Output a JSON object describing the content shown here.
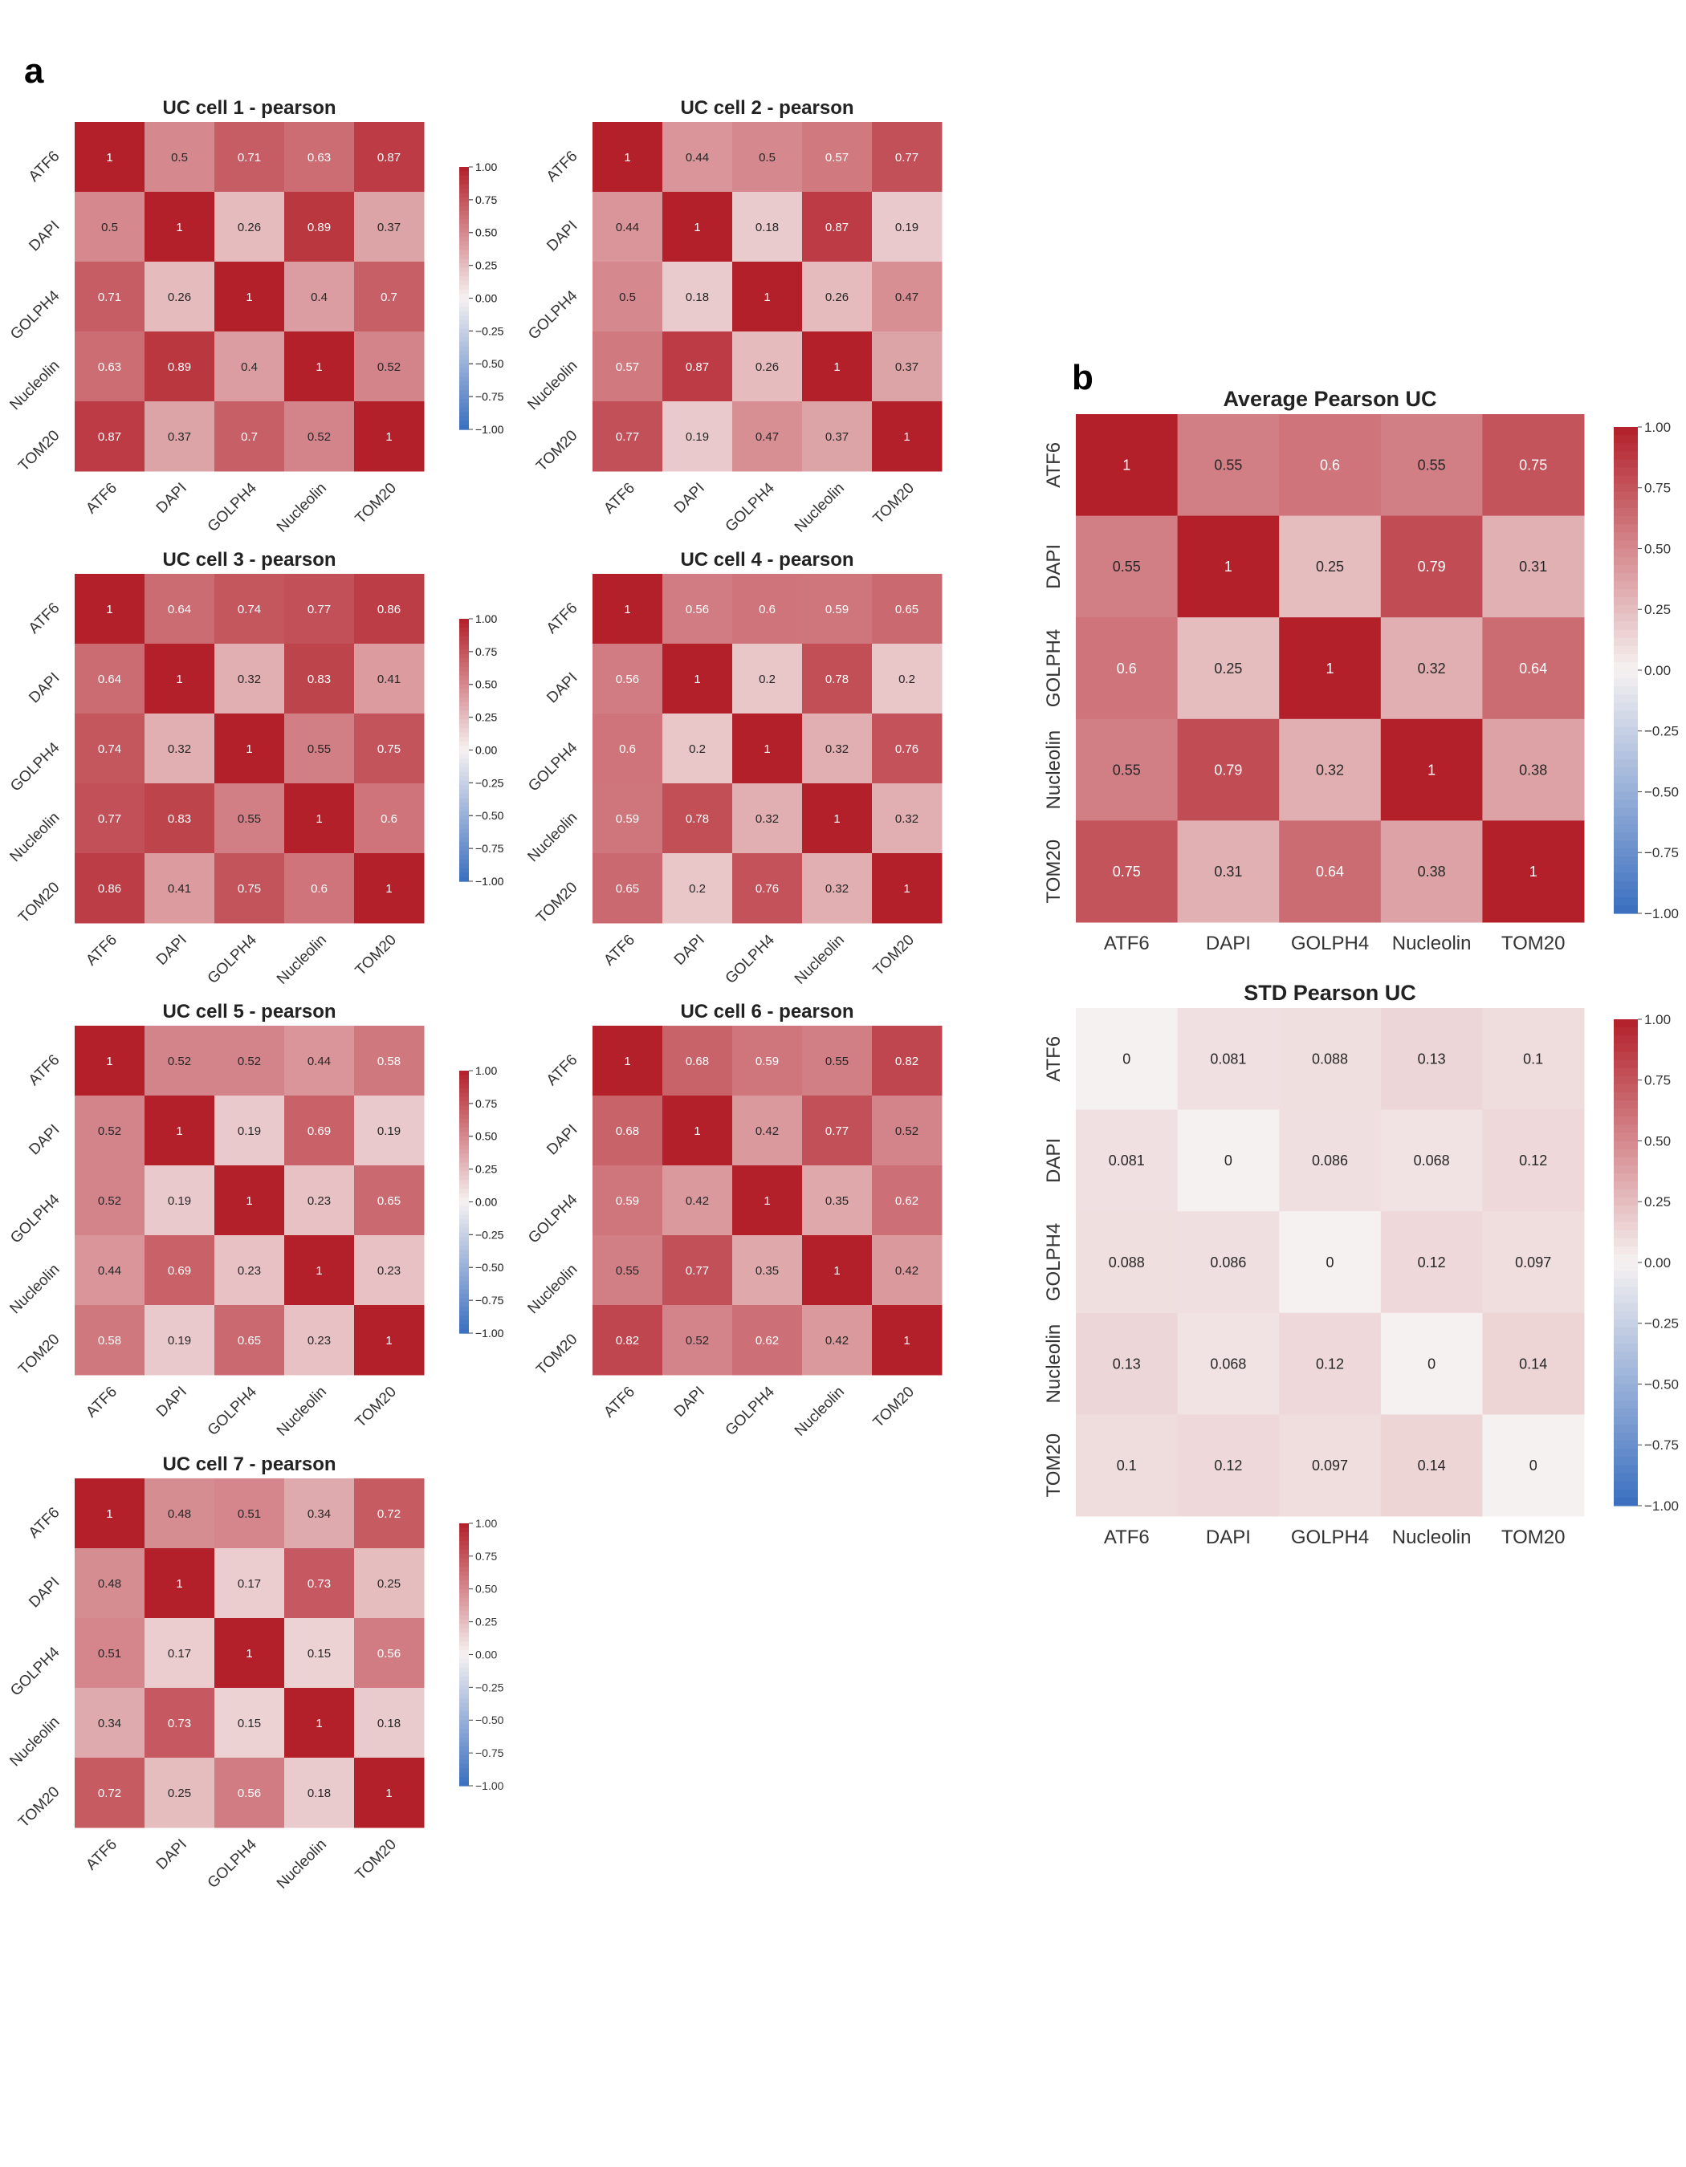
{
  "panel_labels": {
    "a": "a",
    "b": "b"
  },
  "colormap": {
    "low": "#3a6fbf",
    "mid": "#f6f1f1",
    "high": "#b3202a",
    "vmin": -1.0,
    "vmax": 1.0
  },
  "colorbar_ticks": [
    "1.00",
    "0.75",
    "0.50",
    "0.25",
    "0.00",
    "−0.25",
    "−0.50",
    "−0.75",
    "−1.00"
  ],
  "chart_data": [
    {
      "type": "heatmap",
      "title": "UC cell 1 - pearson",
      "rows": [
        "ATF6",
        "DAPI",
        "GOLPH4",
        "Nucleolin",
        "TOM20"
      ],
      "cols": [
        "ATF6",
        "DAPI",
        "GOLPH4",
        "Nucleolin",
        "TOM20"
      ],
      "values": [
        [
          1,
          0.5,
          0.71,
          0.63,
          0.87
        ],
        [
          0.5,
          1,
          0.26,
          0.89,
          0.37
        ],
        [
          0.71,
          0.26,
          1,
          0.4,
          0.7
        ],
        [
          0.63,
          0.89,
          0.4,
          1,
          0.52
        ],
        [
          0.87,
          0.37,
          0.7,
          0.52,
          1
        ]
      ],
      "labels": [
        [
          "1",
          "0.5",
          "0.71",
          "0.63",
          "0.87"
        ],
        [
          "0.5",
          "1",
          "0.26",
          "0.89",
          "0.37"
        ],
        [
          "0.71",
          "0.26",
          "1",
          "0.4",
          "0.7"
        ],
        [
          "0.63",
          "0.89",
          "0.4",
          "1",
          "0.52"
        ],
        [
          "0.87",
          "0.37",
          "0.7",
          "0.52",
          "1"
        ]
      ],
      "vmin": -1,
      "vmax": 1
    },
    {
      "type": "heatmap",
      "title": "UC cell 2 - pearson",
      "rows": [
        "ATF6",
        "DAPI",
        "GOLPH4",
        "Nucleolin",
        "TOM20"
      ],
      "cols": [
        "ATF6",
        "DAPI",
        "GOLPH4",
        "Nucleolin",
        "TOM20"
      ],
      "values": [
        [
          1,
          0.44,
          0.5,
          0.57,
          0.77
        ],
        [
          0.44,
          1,
          0.18,
          0.87,
          0.19
        ],
        [
          0.5,
          0.18,
          1,
          0.26,
          0.47
        ],
        [
          0.57,
          0.87,
          0.26,
          1,
          0.37
        ],
        [
          0.77,
          0.19,
          0.47,
          0.37,
          1
        ]
      ],
      "labels": [
        [
          "1",
          "0.44",
          "0.5",
          "0.57",
          "0.77"
        ],
        [
          "0.44",
          "1",
          "0.18",
          "0.87",
          "0.19"
        ],
        [
          "0.5",
          "0.18",
          "1",
          "0.26",
          "0.47"
        ],
        [
          "0.57",
          "0.87",
          "0.26",
          "1",
          "0.37"
        ],
        [
          "0.77",
          "0.19",
          "0.47",
          "0.37",
          "1"
        ]
      ],
      "vmin": -1,
      "vmax": 1
    },
    {
      "type": "heatmap",
      "title": "UC cell 3 - pearson",
      "rows": [
        "ATF6",
        "DAPI",
        "GOLPH4",
        "Nucleolin",
        "TOM20"
      ],
      "cols": [
        "ATF6",
        "DAPI",
        "GOLPH4",
        "Nucleolin",
        "TOM20"
      ],
      "values": [
        [
          1,
          0.64,
          0.74,
          0.77,
          0.86
        ],
        [
          0.64,
          1,
          0.32,
          0.83,
          0.41
        ],
        [
          0.74,
          0.32,
          1,
          0.55,
          0.75
        ],
        [
          0.77,
          0.83,
          0.55,
          1,
          0.6
        ],
        [
          0.86,
          0.41,
          0.75,
          0.6,
          1
        ]
      ],
      "labels": [
        [
          "1",
          "0.64",
          "0.74",
          "0.77",
          "0.86"
        ],
        [
          "0.64",
          "1",
          "0.32",
          "0.83",
          "0.41"
        ],
        [
          "0.74",
          "0.32",
          "1",
          "0.55",
          "0.75"
        ],
        [
          "0.77",
          "0.83",
          "0.55",
          "1",
          "0.6"
        ],
        [
          "0.86",
          "0.41",
          "0.75",
          "0.6",
          "1"
        ]
      ],
      "vmin": -1,
      "vmax": 1
    },
    {
      "type": "heatmap",
      "title": "UC cell 4 - pearson",
      "rows": [
        "ATF6",
        "DAPI",
        "GOLPH4",
        "Nucleolin",
        "TOM20"
      ],
      "cols": [
        "ATF6",
        "DAPI",
        "GOLPH4",
        "Nucleolin",
        "TOM20"
      ],
      "values": [
        [
          1,
          0.56,
          0.6,
          0.59,
          0.65
        ],
        [
          0.56,
          1,
          0.2,
          0.78,
          0.2
        ],
        [
          0.6,
          0.2,
          1,
          0.32,
          0.76
        ],
        [
          0.59,
          0.78,
          0.32,
          1,
          0.32
        ],
        [
          0.65,
          0.2,
          0.76,
          0.32,
          1
        ]
      ],
      "labels": [
        [
          "1",
          "0.56",
          "0.6",
          "0.59",
          "0.65"
        ],
        [
          "0.56",
          "1",
          "0.2",
          "0.78",
          "0.2"
        ],
        [
          "0.6",
          "0.2",
          "1",
          "0.32",
          "0.76"
        ],
        [
          "0.59",
          "0.78",
          "0.32",
          "1",
          "0.32"
        ],
        [
          "0.65",
          "0.2",
          "0.76",
          "0.32",
          "1"
        ]
      ],
      "vmin": -1,
      "vmax": 1
    },
    {
      "type": "heatmap",
      "title": "UC cell 5 - pearson",
      "rows": [
        "ATF6",
        "DAPI",
        "GOLPH4",
        "Nucleolin",
        "TOM20"
      ],
      "cols": [
        "ATF6",
        "DAPI",
        "GOLPH4",
        "Nucleolin",
        "TOM20"
      ],
      "values": [
        [
          1,
          0.52,
          0.52,
          0.44,
          0.58
        ],
        [
          0.52,
          1,
          0.19,
          0.69,
          0.19
        ],
        [
          0.52,
          0.19,
          1,
          0.23,
          0.65
        ],
        [
          0.44,
          0.69,
          0.23,
          1,
          0.23
        ],
        [
          0.58,
          0.19,
          0.65,
          0.23,
          1
        ]
      ],
      "labels": [
        [
          "1",
          "0.52",
          "0.52",
          "0.44",
          "0.58"
        ],
        [
          "0.52",
          "1",
          "0.19",
          "0.69",
          "0.19"
        ],
        [
          "0.52",
          "0.19",
          "1",
          "0.23",
          "0.65"
        ],
        [
          "0.44",
          "0.69",
          "0.23",
          "1",
          "0.23"
        ],
        [
          "0.58",
          "0.19",
          "0.65",
          "0.23",
          "1"
        ]
      ],
      "vmin": -1,
      "vmax": 1
    },
    {
      "type": "heatmap",
      "title": "UC cell 6 - pearson",
      "rows": [
        "ATF6",
        "DAPI",
        "GOLPH4",
        "Nucleolin",
        "TOM20"
      ],
      "cols": [
        "ATF6",
        "DAPI",
        "GOLPH4",
        "Nucleolin",
        "TOM20"
      ],
      "values": [
        [
          1,
          0.68,
          0.59,
          0.55,
          0.82
        ],
        [
          0.68,
          1,
          0.42,
          0.77,
          0.52
        ],
        [
          0.59,
          0.42,
          1,
          0.35,
          0.62
        ],
        [
          0.55,
          0.77,
          0.35,
          1,
          0.42
        ],
        [
          0.82,
          0.52,
          0.62,
          0.42,
          1
        ]
      ],
      "labels": [
        [
          "1",
          "0.68",
          "0.59",
          "0.55",
          "0.82"
        ],
        [
          "0.68",
          "1",
          "0.42",
          "0.77",
          "0.52"
        ],
        [
          "0.59",
          "0.42",
          "1",
          "0.35",
          "0.62"
        ],
        [
          "0.55",
          "0.77",
          "0.35",
          "1",
          "0.42"
        ],
        [
          "0.82",
          "0.52",
          "0.62",
          "0.42",
          "1"
        ]
      ],
      "vmin": -1,
      "vmax": 1
    },
    {
      "type": "heatmap",
      "title": "UC cell 7 - pearson",
      "rows": [
        "ATF6",
        "DAPI",
        "GOLPH4",
        "Nucleolin",
        "TOM20"
      ],
      "cols": [
        "ATF6",
        "DAPI",
        "GOLPH4",
        "Nucleolin",
        "TOM20"
      ],
      "values": [
        [
          1,
          0.48,
          0.51,
          0.34,
          0.72
        ],
        [
          0.48,
          1,
          0.17,
          0.73,
          0.25
        ],
        [
          0.51,
          0.17,
          1,
          0.15,
          0.56
        ],
        [
          0.34,
          0.73,
          0.15,
          1,
          0.18
        ],
        [
          0.72,
          0.25,
          0.56,
          0.18,
          1
        ]
      ],
      "labels": [
        [
          "1",
          "0.48",
          "0.51",
          "0.34",
          "0.72"
        ],
        [
          "0.48",
          "1",
          "0.17",
          "0.73",
          "0.25"
        ],
        [
          "0.51",
          "0.17",
          "1",
          "0.15",
          "0.56"
        ],
        [
          "0.34",
          "0.73",
          "0.15",
          "1",
          "0.18"
        ],
        [
          "0.72",
          "0.25",
          "0.56",
          "0.18",
          "1"
        ]
      ],
      "vmin": -1,
      "vmax": 1
    },
    {
      "type": "heatmap",
      "title": "Average Pearson UC",
      "rows": [
        "ATF6",
        "DAPI",
        "GOLPH4",
        "Nucleolin",
        "TOM20"
      ],
      "cols": [
        "ATF6",
        "DAPI",
        "GOLPH4",
        "Nucleolin",
        "TOM20"
      ],
      "values": [
        [
          1,
          0.55,
          0.6,
          0.55,
          0.75
        ],
        [
          0.55,
          1,
          0.25,
          0.79,
          0.31
        ],
        [
          0.6,
          0.25,
          1,
          0.32,
          0.64
        ],
        [
          0.55,
          0.79,
          0.32,
          1,
          0.38
        ],
        [
          0.75,
          0.31,
          0.64,
          0.38,
          1
        ]
      ],
      "labels": [
        [
          "1",
          "0.55",
          "0.6",
          "0.55",
          "0.75"
        ],
        [
          "0.55",
          "1",
          "0.25",
          "0.79",
          "0.31"
        ],
        [
          "0.6",
          "0.25",
          "1",
          "0.32",
          "0.64"
        ],
        [
          "0.55",
          "0.79",
          "0.32",
          "1",
          "0.38"
        ],
        [
          "0.75",
          "0.31",
          "0.64",
          "0.38",
          "1"
        ]
      ],
      "vmin": -1,
      "vmax": 1
    },
    {
      "type": "heatmap",
      "title": "STD Pearson UC",
      "rows": [
        "ATF6",
        "DAPI",
        "GOLPH4",
        "Nucleolin",
        "TOM20"
      ],
      "cols": [
        "ATF6",
        "DAPI",
        "GOLPH4",
        "Nucleolin",
        "TOM20"
      ],
      "values": [
        [
          0,
          0.081,
          0.088,
          0.13,
          0.1
        ],
        [
          0.081,
          0,
          0.086,
          0.068,
          0.12
        ],
        [
          0.088,
          0.086,
          0,
          0.12,
          0.097
        ],
        [
          0.13,
          0.068,
          0.12,
          0,
          0.14
        ],
        [
          0.1,
          0.12,
          0.097,
          0.14,
          0
        ]
      ],
      "labels": [
        [
          "0",
          "0.081",
          "0.088",
          "0.13",
          "0.1"
        ],
        [
          "0.081",
          "0",
          "0.086",
          "0.068",
          "0.12"
        ],
        [
          "0.088",
          "0.086",
          "0",
          "0.12",
          "0.097"
        ],
        [
          "0.13",
          "0.068",
          "0.12",
          "0",
          "0.14"
        ],
        [
          "0.1",
          "0.12",
          "0.097",
          "0.14",
          "0"
        ]
      ],
      "vmin": -1,
      "vmax": 1
    }
  ]
}
